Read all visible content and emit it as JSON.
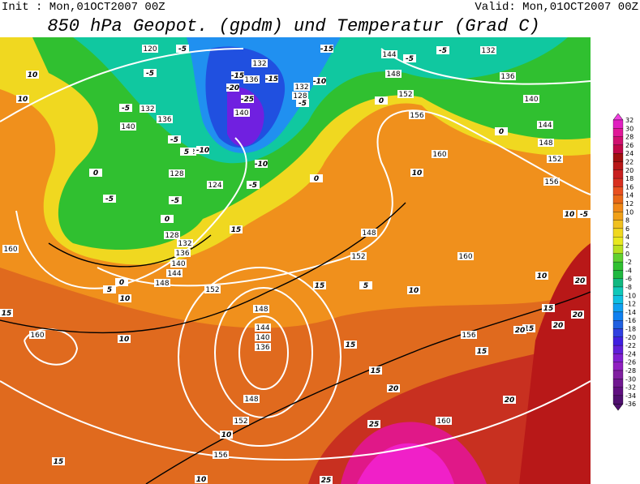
{
  "header": {
    "init": "Init : Mon,01OCT2007 00Z",
    "valid": "Valid: Mon,01OCT2007 00Z",
    "title": "850 hPa Geopot. (gpdm) und Temperatur (Grad C)"
  },
  "colorbar": {
    "levels": [
      32,
      30,
      28,
      26,
      24,
      22,
      20,
      18,
      16,
      14,
      12,
      10,
      8,
      6,
      4,
      2,
      0,
      -2,
      -4,
      -6,
      -8,
      -10,
      -12,
      -14,
      -16,
      -18,
      -20,
      -22,
      -24,
      -26,
      -28,
      -30,
      -32,
      -34,
      -36
    ]
  },
  "geopotential_labels": [
    120,
    132,
    136,
    132,
    128,
    140,
    132,
    140,
    136,
    132,
    128,
    124,
    128,
    132,
    136,
    140,
    144,
    148,
    152,
    148,
    144,
    140,
    136,
    148,
    152,
    156,
    160,
    160,
    144,
    148,
    152,
    156,
    160,
    156,
    152,
    148,
    144,
    140,
    136,
    132,
    148,
    152,
    160,
    156,
    160
  ],
  "temperature_labels": [
    -5,
    -5,
    10,
    10,
    -5,
    -5,
    0,
    -5,
    -5,
    0,
    -15,
    -20,
    -25,
    -10,
    -10,
    -5,
    -15,
    -10,
    -5,
    0,
    -15,
    5,
    15,
    0,
    5,
    10,
    15,
    10,
    15,
    10,
    15,
    5,
    10,
    20,
    15,
    20,
    15,
    20,
    20,
    15,
    20,
    25,
    20,
    15,
    10,
    15,
    25,
    10,
    0,
    -5,
    -5,
    10,
    10,
    -5,
    0
  ]
}
